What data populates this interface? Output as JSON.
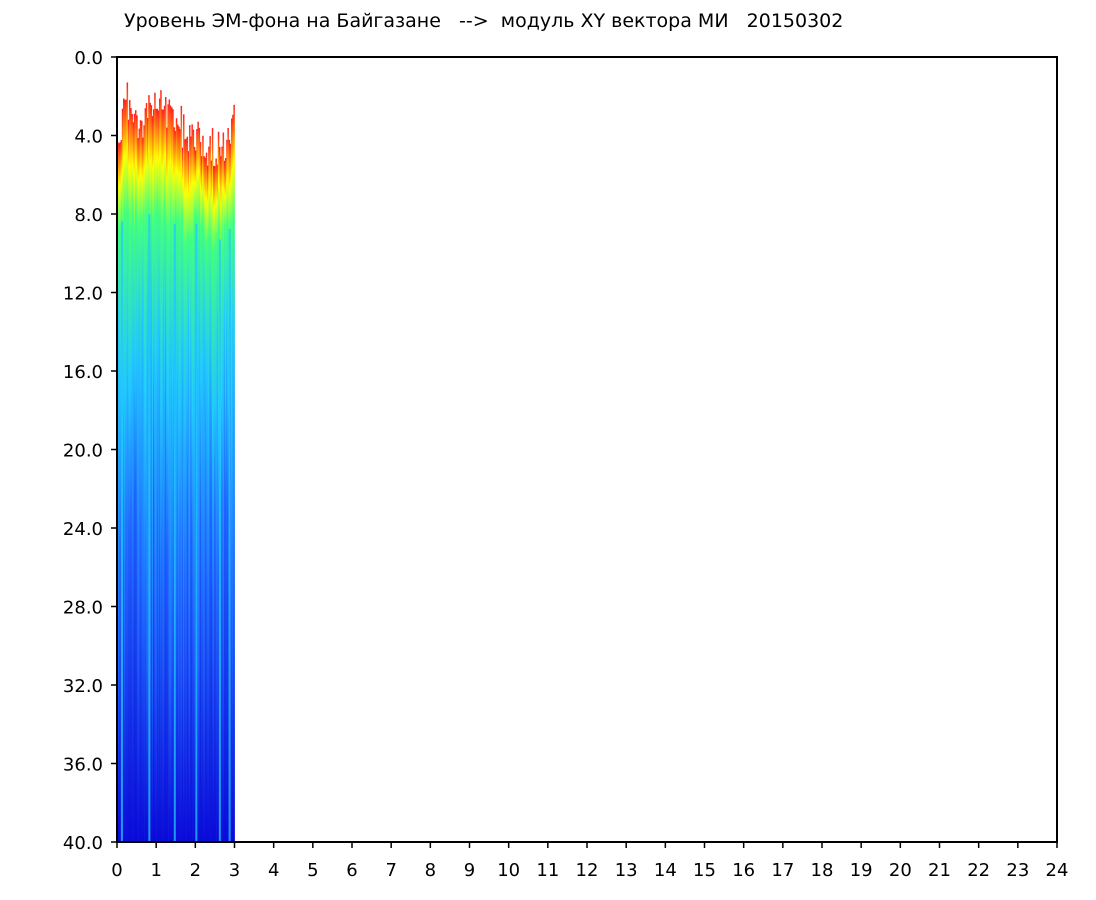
{
  "chart_data": {
    "type": "heatmap",
    "title": "Уровень ЭМ-фона на Байгазане   -->  модуль XY вектора МИ   20150302",
    "xlabel": "",
    "ylabel": "",
    "xlim": [
      0,
      24
    ],
    "ylim": [
      0,
      40
    ],
    "y_inverted": true,
    "x_ticks": [
      "0",
      "1",
      "2",
      "3",
      "4",
      "5",
      "6",
      "7",
      "8",
      "9",
      "10",
      "11",
      "12",
      "13",
      "14",
      "15",
      "16",
      "17",
      "18",
      "19",
      "20",
      "21",
      "22",
      "23",
      "24"
    ],
    "y_ticks": [
      "0.0",
      "4.0",
      "8.0",
      "12.0",
      "16.0",
      "20.0",
      "24.0",
      "28.0",
      "32.0",
      "36.0",
      "40.0"
    ],
    "data_extent_hours": [
      0,
      3.0
    ],
    "colormap": [
      "#0a0ad8",
      "#1e64ff",
      "#20c8ff",
      "#40ff80",
      "#ffff00",
      "#ff2020"
    ],
    "top_edge": {
      "hours": [
        0.05,
        0.25,
        0.5,
        0.75,
        1.0,
        1.25,
        1.5,
        1.75,
        2.0,
        2.25,
        2.5,
        2.75,
        2.95
      ],
      "red_start": [
        4.0,
        2.0,
        3.5,
        3.0,
        2.2,
        3.0,
        3.2,
        3.8,
        4.2,
        4.5,
        4.5,
        5.0,
        3.5
      ],
      "green_start": [
        8.5,
        8.0,
        8.5,
        8.0,
        8.0,
        8.5,
        8.5,
        9.0,
        8.5,
        9.0,
        9.5,
        9.0,
        8.5
      ]
    },
    "bright_lines_hours": [
      0.1,
      0.8,
      1.45,
      2.0,
      2.6,
      2.85
    ]
  }
}
